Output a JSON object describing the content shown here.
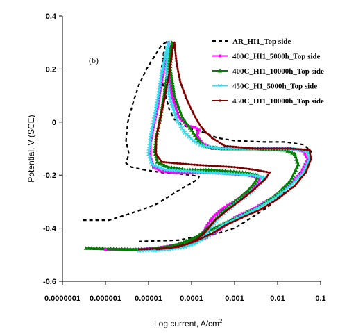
{
  "chart_data": {
    "type": "line",
    "panel_label": "(b)",
    "xlabel": "Log current, A/cm",
    "xlabel_sup": "2",
    "ylabel": "Potential, V (SCE)",
    "x_scale": "log",
    "xlim": [
      1e-07,
      0.1
    ],
    "ylim": [
      -0.6,
      0.4
    ],
    "x_ticks": [
      1e-07,
      1e-06,
      1e-05,
      0.0001,
      0.001,
      0.01,
      0.1
    ],
    "x_tick_labels": [
      "0.0000001",
      "0.000001",
      "0.00001",
      "0.0001",
      "0.001",
      "0.01",
      "0.1"
    ],
    "y_ticks": [
      -0.6,
      -0.4,
      -0.2,
      0,
      0.2,
      0.4
    ],
    "y_tick_labels": [
      "-0.6",
      "-0.4",
      "-0.2",
      "0",
      "0.2",
      "0.4"
    ],
    "grid": false,
    "legend_position": "top-right",
    "series": [
      {
        "name": "AR_HI1_Top side",
        "color": "#000000",
        "style": "dashed",
        "points": [
          [
            3e-07,
            -0.37
          ],
          [
            1.2e-06,
            -0.37
          ],
          [
            3e-06,
            -0.35
          ],
          [
            7e-06,
            -0.33
          ],
          [
            1.5e-05,
            -0.31
          ],
          [
            3e-05,
            -0.28
          ],
          [
            6e-05,
            -0.25
          ],
          [
            0.0001,
            -0.23
          ],
          [
            0.00014,
            -0.215
          ],
          [
            0.00015,
            -0.205
          ],
          [
            0.0001,
            -0.2
          ],
          [
            5e-05,
            -0.195
          ],
          [
            2e-05,
            -0.19
          ],
          [
            8e-06,
            -0.18
          ],
          [
            4e-06,
            -0.17
          ],
          [
            3e-06,
            -0.155
          ],
          [
            3.5e-06,
            -0.12
          ],
          [
            3e-06,
            -0.07
          ],
          [
            3.3e-06,
            0.0
          ],
          [
            4.5e-06,
            0.08
          ],
          [
            6e-06,
            0.14
          ],
          [
            9e-06,
            0.2
          ],
          [
            1.4e-05,
            0.25
          ],
          [
            2e-05,
            0.29
          ],
          [
            2.5e-05,
            0.3
          ],
          [
            2.2e-05,
            0.25
          ],
          [
            2e-05,
            0.2
          ],
          [
            2.1e-05,
            0.15
          ],
          [
            2.5e-05,
            0.1
          ],
          [
            3e-05,
            0.05
          ],
          [
            4e-05,
            0.01
          ],
          [
            6e-05,
            -0.01
          ],
          [
            0.0001,
            -0.025
          ],
          [
            0.0002,
            -0.04
          ],
          [
            0.0004,
            -0.06
          ],
          [
            0.001,
            -0.07
          ],
          [
            0.005,
            -0.075
          ],
          [
            0.015,
            -0.075
          ],
          [
            0.04,
            -0.085
          ],
          [
            0.06,
            -0.11
          ],
          [
            0.05,
            -0.15
          ],
          [
            0.03,
            -0.2
          ],
          [
            0.015,
            -0.26
          ],
          [
            0.006,
            -0.32
          ],
          [
            0.002,
            -0.37
          ],
          [
            0.001,
            -0.4
          ],
          [
            0.0004,
            -0.42
          ],
          [
            0.00015,
            -0.43
          ],
          [
            5e-05,
            -0.445
          ],
          [
            6e-06,
            -0.45
          ]
        ]
      },
      {
        "name": "400C_HI1_5000h_Top side",
        "color": "#ff00ff",
        "style": "square-markers",
        "points": [
          [
            1.1e-06,
            -0.48
          ],
          [
            6e-06,
            -0.48
          ],
          [
            2e-05,
            -0.475
          ],
          [
            5e-05,
            -0.465
          ],
          [
            0.0001,
            -0.45
          ],
          [
            0.00018,
            -0.42
          ],
          [
            0.00025,
            -0.38
          ],
          [
            0.00035,
            -0.35
          ],
          [
            0.0006,
            -0.32
          ],
          [
            0.0012,
            -0.29
          ],
          [
            0.0023,
            -0.26
          ],
          [
            0.0035,
            -0.23
          ],
          [
            0.004,
            -0.21
          ],
          [
            0.002,
            -0.2
          ],
          [
            0.0008,
            -0.195
          ],
          [
            0.0003,
            -0.19
          ],
          [
            0.0001,
            -0.19
          ],
          [
            4e-05,
            -0.19
          ],
          [
            2e-05,
            -0.185
          ],
          [
            1.3e-05,
            -0.17
          ],
          [
            1.1e-05,
            -0.13
          ],
          [
            1.1e-05,
            -0.08
          ],
          [
            1.3e-05,
            -0.02
          ],
          [
            1.6e-05,
            0.05
          ],
          [
            2e-05,
            0.15
          ],
          [
            2.6e-05,
            0.25
          ],
          [
            2.9e-05,
            0.3
          ],
          [
            2.8e-05,
            0.2
          ],
          [
            3.5e-05,
            0.1
          ],
          [
            5e-05,
            0.02
          ],
          [
            8e-05,
            -0.015
          ],
          [
            0.00012,
            -0.02
          ],
          [
            0.00015,
            -0.03
          ],
          [
            0.00013,
            -0.05
          ],
          [
            0.00018,
            -0.08
          ],
          [
            0.0003,
            -0.1
          ],
          [
            0.001,
            -0.1
          ],
          [
            0.005,
            -0.1
          ],
          [
            0.02,
            -0.1
          ],
          [
            0.04,
            -0.11
          ],
          [
            0.05,
            -0.14
          ],
          [
            0.035,
            -0.19
          ],
          [
            0.018,
            -0.24
          ],
          [
            0.007,
            -0.29
          ],
          [
            0.0025,
            -0.33
          ],
          [
            0.001,
            -0.36
          ],
          [
            0.0005,
            -0.4
          ],
          [
            0.0002,
            -0.44
          ],
          [
            6e-05,
            -0.46
          ],
          [
            1.5e-05,
            -0.475
          ],
          [
            6e-06,
            -0.48
          ]
        ]
      },
      {
        "name": "400C_HI1_10000h_Top side",
        "color": "#008000",
        "style": "triangle-markers",
        "points": [
          [
            4e-07,
            -0.475
          ],
          [
            8e-06,
            -0.48
          ],
          [
            3e-05,
            -0.47
          ],
          [
            7e-05,
            -0.455
          ],
          [
            0.00012,
            -0.44
          ],
          [
            0.0002,
            -0.41
          ],
          [
            0.0003,
            -0.38
          ],
          [
            0.0005,
            -0.34
          ],
          [
            0.001,
            -0.3
          ],
          [
            0.002,
            -0.26
          ],
          [
            0.0032,
            -0.22
          ],
          [
            0.0035,
            -0.2
          ],
          [
            0.0018,
            -0.19
          ],
          [
            0.0007,
            -0.185
          ],
          [
            0.00025,
            -0.18
          ],
          [
            8e-05,
            -0.18
          ],
          [
            3e-05,
            -0.17
          ],
          [
            1.6e-05,
            -0.15
          ],
          [
            1.4e-05,
            -0.11
          ],
          [
            1.5e-05,
            -0.06
          ],
          [
            1.8e-05,
            0.0
          ],
          [
            2.2e-05,
            0.08
          ],
          [
            2.7e-05,
            0.18
          ],
          [
            3.2e-05,
            0.27
          ],
          [
            3.5e-05,
            0.3
          ],
          [
            3.2e-05,
            0.2
          ],
          [
            4e-05,
            0.1
          ],
          [
            6e-05,
            0.02
          ],
          [
            0.0001,
            -0.03
          ],
          [
            0.00013,
            -0.06
          ],
          [
            0.0002,
            -0.09
          ],
          [
            0.0005,
            -0.1
          ],
          [
            0.003,
            -0.1
          ],
          [
            0.015,
            -0.105
          ],
          [
            0.025,
            -0.12
          ],
          [
            0.03,
            -0.16
          ],
          [
            0.02,
            -0.22
          ],
          [
            0.01,
            -0.27
          ],
          [
            0.0035,
            -0.32
          ],
          [
            0.0015,
            -0.35
          ],
          [
            0.0006,
            -0.38
          ],
          [
            0.00025,
            -0.41
          ],
          [
            0.0001,
            -0.44
          ],
          [
            5e-05,
            -0.46
          ],
          [
            2e-05,
            -0.475
          ],
          [
            5e-06,
            -0.48
          ]
        ]
      },
      {
        "name": "450C_H1_5000h_Top side",
        "color": "#33ddee",
        "style": "x-markers",
        "points": [
          [
            6e-06,
            -0.485
          ],
          [
            3e-05,
            -0.48
          ],
          [
            7e-05,
            -0.47
          ],
          [
            0.00013,
            -0.455
          ],
          [
            0.0002,
            -0.43
          ],
          [
            0.0003,
            -0.39
          ],
          [
            0.0005,
            -0.35
          ],
          [
            0.001,
            -0.31
          ],
          [
            0.0022,
            -0.27
          ],
          [
            0.004,
            -0.23
          ],
          [
            0.005,
            -0.21
          ],
          [
            0.0025,
            -0.2
          ],
          [
            0.0008,
            -0.195
          ],
          [
            0.00025,
            -0.19
          ],
          [
            8e-05,
            -0.185
          ],
          [
            2.5e-05,
            -0.18
          ],
          [
            1.2e-05,
            -0.16
          ],
          [
            1e-05,
            -0.12
          ],
          [
            1.1e-05,
            -0.06
          ],
          [
            1.3e-05,
            0.0
          ],
          [
            1.6e-05,
            0.08
          ],
          [
            2e-05,
            0.18
          ],
          [
            2.6e-05,
            0.27
          ],
          [
            2.9e-05,
            0.3
          ],
          [
            2.6e-05,
            0.2
          ],
          [
            3e-05,
            0.1
          ],
          [
            4.5e-05,
            0.01
          ],
          [
            7e-05,
            -0.04
          ],
          [
            0.00011,
            -0.07
          ],
          [
            0.00018,
            -0.09
          ],
          [
            0.0005,
            -0.1
          ],
          [
            0.003,
            -0.1
          ],
          [
            0.02,
            -0.1
          ],
          [
            0.05,
            -0.11
          ],
          [
            0.055,
            -0.14
          ],
          [
            0.04,
            -0.19
          ],
          [
            0.02,
            -0.24
          ],
          [
            0.008,
            -0.29
          ],
          [
            0.003,
            -0.33
          ],
          [
            0.0012,
            -0.36
          ],
          [
            0.0005,
            -0.39
          ],
          [
            0.00025,
            -0.43
          ],
          [
            0.0001,
            -0.46
          ],
          [
            4e-05,
            -0.475
          ],
          [
            1.2e-05,
            -0.485
          ]
        ]
      },
      {
        "name": "450C_HI1_10000h_Top side",
        "color": "#800000",
        "style": "dot-markers",
        "points": [
          [
            6e-06,
            -0.48
          ],
          [
            3e-05,
            -0.475
          ],
          [
            8e-05,
            -0.46
          ],
          [
            0.00014,
            -0.44
          ],
          [
            0.00022,
            -0.41
          ],
          [
            0.00035,
            -0.37
          ],
          [
            0.0007,
            -0.33
          ],
          [
            0.0015,
            -0.29
          ],
          [
            0.003,
            -0.25
          ],
          [
            0.0055,
            -0.21
          ],
          [
            0.0065,
            -0.19
          ],
          [
            0.003,
            -0.18
          ],
          [
            0.001,
            -0.17
          ],
          [
            0.0003,
            -0.165
          ],
          [
            0.0001,
            -0.16
          ],
          [
            4e-05,
            -0.155
          ],
          [
            2e-05,
            -0.15
          ],
          [
            1.5e-05,
            -0.12
          ],
          [
            1.5e-05,
            -0.06
          ],
          [
            1.8e-05,
            0.0
          ],
          [
            2.3e-05,
            0.08
          ],
          [
            3e-05,
            0.18
          ],
          [
            3.6e-05,
            0.27
          ],
          [
            4e-05,
            0.3
          ],
          [
            4.5e-05,
            0.22
          ],
          [
            5.5e-05,
            0.15
          ],
          [
            8e-05,
            0.08
          ],
          [
            0.00012,
            0.02
          ],
          [
            0.00017,
            -0.02
          ],
          [
            0.00022,
            -0.04
          ],
          [
            0.0003,
            -0.06
          ],
          [
            0.0006,
            -0.09
          ],
          [
            0.003,
            -0.1
          ],
          [
            0.02,
            -0.1
          ],
          [
            0.055,
            -0.105
          ],
          [
            0.06,
            -0.14
          ],
          [
            0.045,
            -0.19
          ],
          [
            0.025,
            -0.24
          ],
          [
            0.01,
            -0.29
          ],
          [
            0.004,
            -0.33
          ],
          [
            0.0015,
            -0.36
          ],
          [
            0.0006,
            -0.39
          ],
          [
            0.0003,
            -0.42
          ],
          [
            0.00012,
            -0.45
          ],
          [
            5e-05,
            -0.47
          ],
          [
            1.5e-05,
            -0.48
          ]
        ]
      }
    ],
    "extra_points": [
      {
        "series": "400C_HI1_10000h_Top side",
        "x": 3.5e-07,
        "y": -0.475
      },
      {
        "series": "400C_HI1_5000h_Top side",
        "x": 1e-06,
        "y": -0.48
      },
      {
        "series": "400C_HI1_10000h_Top side",
        "x": 0.025,
        "y": -0.12
      }
    ]
  }
}
